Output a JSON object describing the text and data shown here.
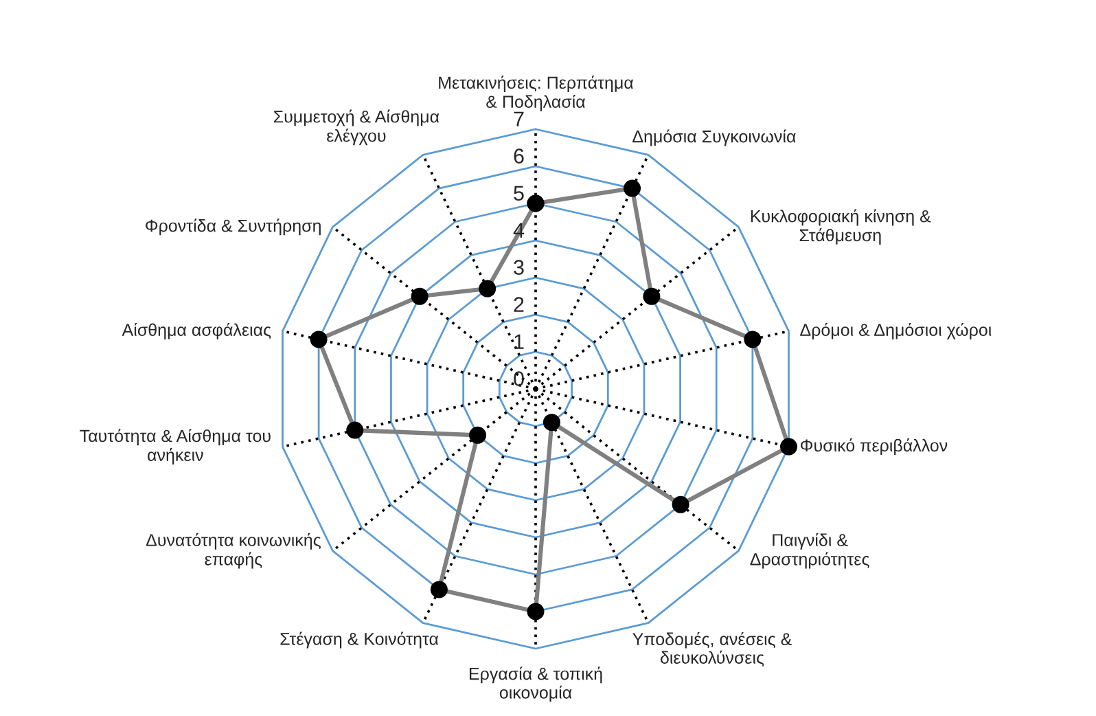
{
  "chart_data": {
    "type": "radar",
    "categories": [
      "Μετακινήσεις: Περπάτημα\n& Ποδηλασία",
      "Δημόσια Συγκοινωνία",
      "Κυκλοφοριακή κίνηση &\nΣτάθμευση",
      "Δρόμοι & Δημόσιοι χώροι",
      "Φυσικό περιβάλλον",
      "Παιγνίδι &\nΔραστηριότητες",
      "Υποδομές, ανέσεις &\nδιευκολύνσεις",
      "Εργασία & τοπική\nοικονομία",
      "Στέγαση & Κοινότητα",
      "Δυνατότητα κοινωνικής\nεπαφής",
      "Ταυτότητα & Αίσθημα του\nανήκειν",
      "Αίσθημα ασφάλειας",
      "Φροντίδα & Συντήρηση",
      "Συμμετοχή & Αίσθημα\nελέγχου"
    ],
    "series": [
      {
        "color": "#808080",
        "values": [
          5,
          6,
          4,
          6,
          7,
          5,
          1,
          6,
          6,
          2,
          5,
          6,
          4,
          3
        ]
      }
    ],
    "ylim": [
      0,
      7
    ],
    "yticks": [
      0,
      1,
      2,
      3,
      4,
      5,
      6,
      7
    ],
    "grid": true,
    "marker": "circle",
    "line_style": "solid"
  }
}
